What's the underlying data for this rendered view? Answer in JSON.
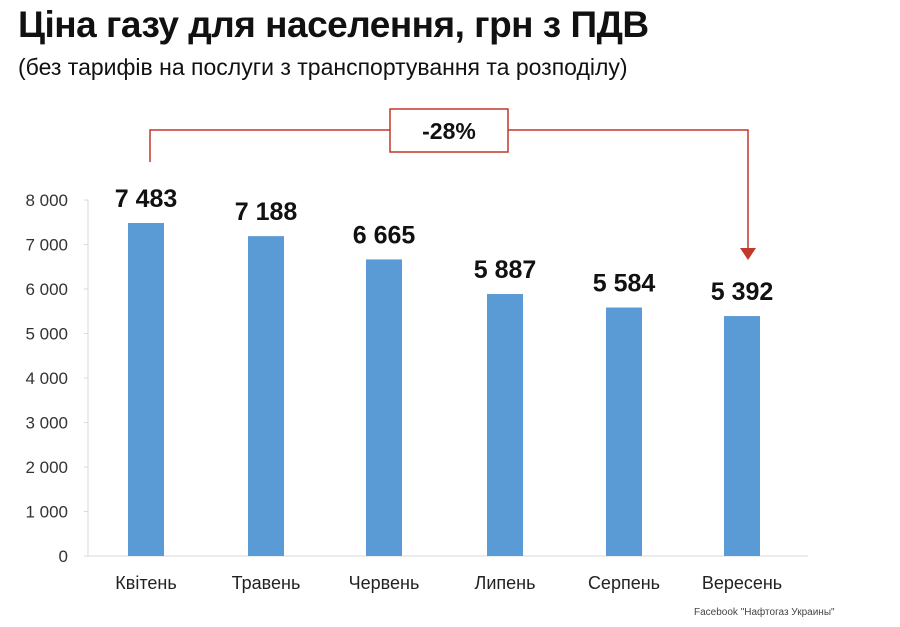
{
  "chart_data": {
    "type": "bar",
    "title": "Ціна газу для населення, грн з ПДВ",
    "subtitle": "(без тарифів на послуги з транспортування та розподілу)",
    "categories": [
      "Квітень",
      "Травень",
      "Червень",
      "Липень",
      "Серпень",
      "Вересень"
    ],
    "values": [
      7483,
      7188,
      6665,
      5887,
      5584,
      5392
    ],
    "data_labels": [
      "7 483",
      "7 188",
      "6 665",
      "5 887",
      "5 584",
      "5 392"
    ],
    "ylim": [
      0,
      8000
    ],
    "yticks": [
      0,
      1000,
      2000,
      3000,
      4000,
      5000,
      6000,
      7000,
      8000
    ],
    "ytick_labels": [
      "0",
      "1 000",
      "2 000",
      "3 000",
      "4 000",
      "5 000",
      "6 000",
      "7 000",
      "8 000"
    ],
    "grid": false,
    "annotation": {
      "text": "-28%",
      "from": "Квітень",
      "to": "Вересень"
    },
    "bar_color": "#5b9bd5",
    "annotation_color": "#c0392b",
    "source": "Facebook \"Нафтогаз Украины\""
  }
}
